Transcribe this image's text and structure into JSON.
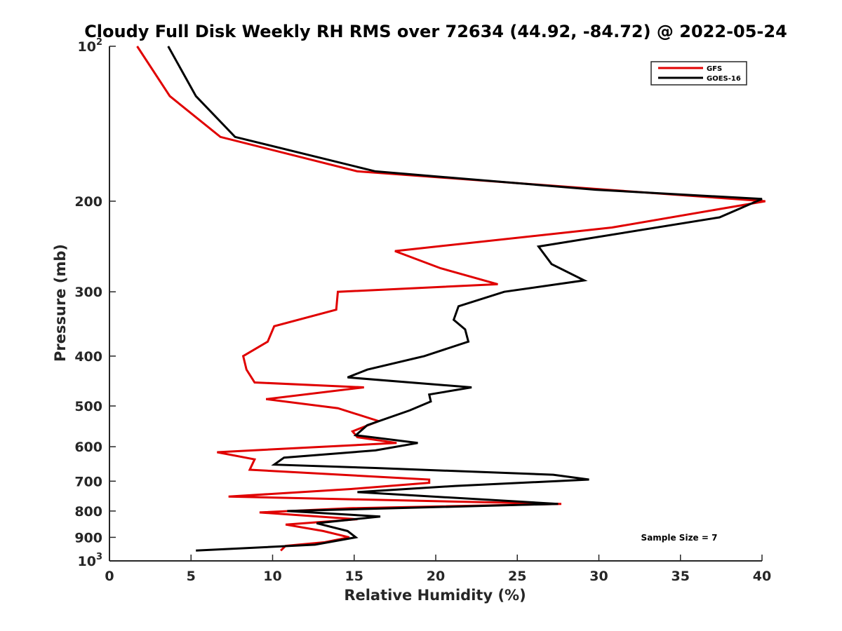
{
  "chart_data": {
    "type": "line",
    "title": "Cloudy Full Disk Weekly RH RMS over 72634 (44.92, -84.72) @ 2022-05-24",
    "xlabel": "Relative Humidity (%)",
    "ylabel": "Pressure (mb)",
    "xlim": [
      0,
      40
    ],
    "ylim": [
      100,
      1000
    ],
    "yscale": "log",
    "y_reversed": true,
    "grid": false,
    "legend_position": "top-right",
    "annotation": "Sample Size = 7",
    "x_ticks": [
      0,
      5,
      10,
      15,
      20,
      25,
      30,
      35,
      40
    ],
    "y_ticks": [
      {
        "value": 100,
        "base": "10",
        "exp": "2"
      },
      {
        "value": 200,
        "label": "200"
      },
      {
        "value": 300,
        "label": "300"
      },
      {
        "value": 400,
        "label": "400"
      },
      {
        "value": 500,
        "label": "500"
      },
      {
        "value": 600,
        "label": "600"
      },
      {
        "value": 700,
        "label": "700"
      },
      {
        "value": 800,
        "label": "800"
      },
      {
        "value": 900,
        "label": "900"
      },
      {
        "value": 1000,
        "base": "10",
        "exp": "3"
      }
    ],
    "series": [
      {
        "name": "GFS",
        "color": "#e00000",
        "points": [
          [
            1.7,
            100
          ],
          [
            3.7,
            125
          ],
          [
            6.8,
            150
          ],
          [
            15.2,
            175
          ],
          [
            30.5,
            190
          ],
          [
            40.2,
            200
          ],
          [
            30.8,
            225
          ],
          [
            17.5,
            250
          ],
          [
            20.3,
            270
          ],
          [
            23.8,
            290
          ],
          [
            14.0,
            300
          ],
          [
            13.9,
            325
          ],
          [
            10.1,
            350
          ],
          [
            9.7,
            375
          ],
          [
            8.2,
            400
          ],
          [
            8.4,
            425
          ],
          [
            8.9,
            450
          ],
          [
            15.6,
            460
          ],
          [
            9.6,
            485
          ],
          [
            14.0,
            505
          ],
          [
            16.5,
            535
          ],
          [
            14.9,
            560
          ],
          [
            15.2,
            575
          ],
          [
            17.6,
            590
          ],
          [
            6.6,
            615
          ],
          [
            8.9,
            635
          ],
          [
            8.6,
            665
          ],
          [
            19.6,
            695
          ],
          [
            19.6,
            705
          ],
          [
            14.8,
            725
          ],
          [
            7.3,
            750
          ],
          [
            27.7,
            775
          ],
          [
            14.7,
            790
          ],
          [
            9.2,
            805
          ],
          [
            15.2,
            830
          ],
          [
            10.8,
            850
          ],
          [
            13.1,
            875
          ],
          [
            14.7,
            900
          ],
          [
            13.2,
            920
          ],
          [
            10.8,
            935
          ],
          [
            10.5,
            955
          ]
        ]
      },
      {
        "name": "GOES-16",
        "color": "#000000",
        "points": [
          [
            3.6,
            100
          ],
          [
            5.3,
            125
          ],
          [
            7.7,
            150
          ],
          [
            16.3,
            175
          ],
          [
            29.8,
            190
          ],
          [
            40.0,
            198
          ],
          [
            37.4,
            215
          ],
          [
            26.3,
            245
          ],
          [
            27.1,
            265
          ],
          [
            29.1,
            285
          ],
          [
            24.2,
            300
          ],
          [
            21.4,
            320
          ],
          [
            21.1,
            340
          ],
          [
            21.8,
            355
          ],
          [
            22.0,
            375
          ],
          [
            19.3,
            400
          ],
          [
            15.8,
            425
          ],
          [
            14.6,
            440
          ],
          [
            22.2,
            460
          ],
          [
            19.6,
            475
          ],
          [
            19.7,
            490
          ],
          [
            18.4,
            510
          ],
          [
            15.8,
            545
          ],
          [
            15.1,
            570
          ],
          [
            18.9,
            590
          ],
          [
            16.3,
            610
          ],
          [
            10.7,
            630
          ],
          [
            10.1,
            650
          ],
          [
            16.3,
            660
          ],
          [
            27.2,
            680
          ],
          [
            29.4,
            695
          ],
          [
            21.2,
            715
          ],
          [
            15.2,
            735
          ],
          [
            27.5,
            775
          ],
          [
            10.9,
            800
          ],
          [
            16.6,
            820
          ],
          [
            12.7,
            845
          ],
          [
            14.6,
            875
          ],
          [
            15.1,
            900
          ],
          [
            12.6,
            930
          ],
          [
            5.3,
            955
          ]
        ]
      }
    ]
  }
}
